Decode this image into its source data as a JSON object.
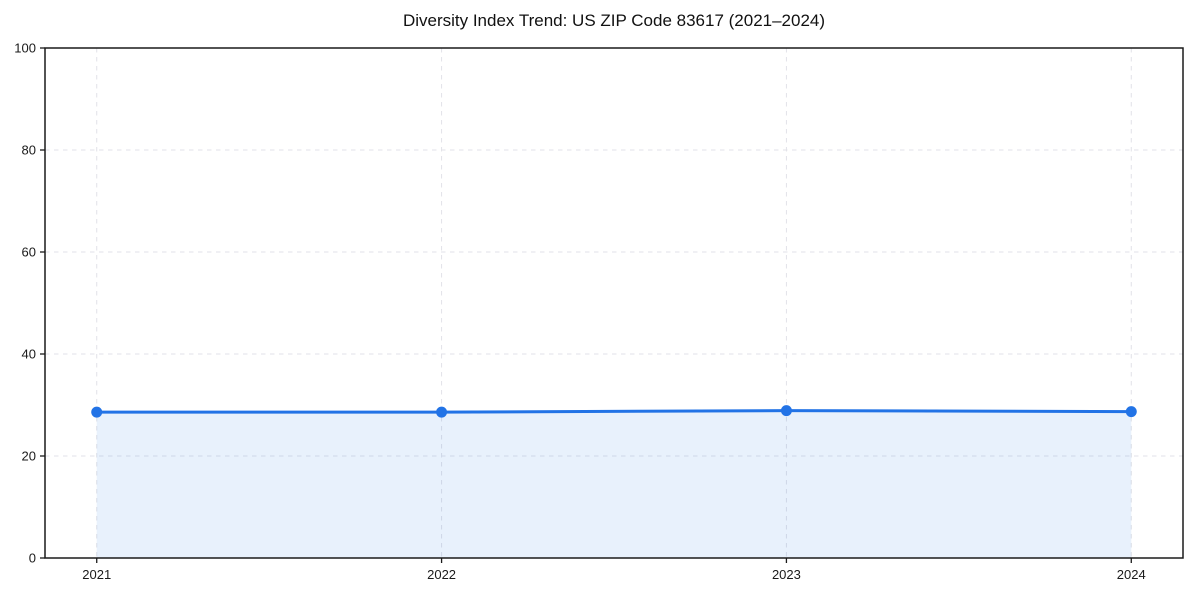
{
  "chart_data": {
    "type": "line",
    "title": "Diversity Index Trend: US ZIP Code 83617 (2021–2024)",
    "x": [
      2021,
      2022,
      2023,
      2024
    ],
    "categories": [
      "2021",
      "2022",
      "2023",
      "2024"
    ],
    "series": [
      {
        "name": "Diversity Index",
        "values": [
          28.6,
          28.6,
          28.9,
          28.7
        ]
      }
    ],
    "xlabel": "",
    "ylabel": "",
    "ylim": [
      0,
      100
    ],
    "yticks": [
      0,
      20,
      40,
      60,
      80,
      100
    ],
    "xlim": [
      2020.85,
      2024.15
    ],
    "grid": "dashed, both axes, light gray",
    "legend_position": "none",
    "area_fill_to_zero": true,
    "marker": "circle",
    "colors": {
      "line": "#2273e6",
      "marker": "#2273e6",
      "fill": "rgba(34,115,230,0.10)",
      "grid": "#e2e2e8",
      "spine": "#1a1a1a",
      "tick_label": "#1a1a1a",
      "title": "#111111",
      "background": "#ffffff"
    }
  }
}
